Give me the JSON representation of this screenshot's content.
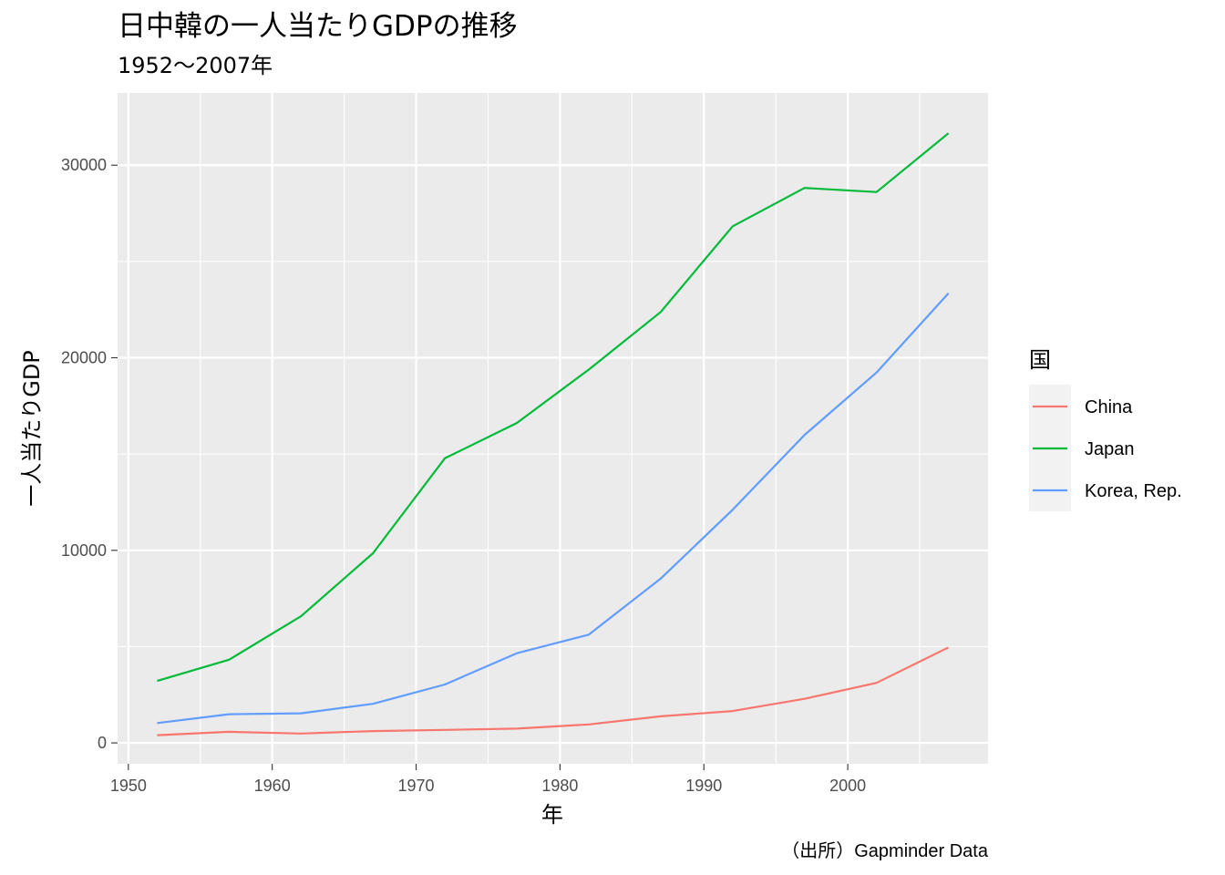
{
  "chart_data": {
    "type": "line",
    "title": "日中韓の一人当たりGDPの推移",
    "subtitle": "1952〜2007年",
    "xlabel": "年",
    "ylabel": "一人当たりGDP",
    "caption": "（出所）Gapminder Data",
    "legend_title": "国",
    "legend_position": "right",
    "grid": true,
    "xlim": [
      1949.25,
      2009.75
    ],
    "ylim": [
      -1085,
      33750
    ],
    "x_ticks": [
      1950,
      1960,
      1970,
      1980,
      1990,
      2000
    ],
    "x_tick_labels": [
      "1950",
      "1960",
      "1970",
      "1980",
      "1990",
      "2000"
    ],
    "y_ticks": [
      0,
      10000,
      20000,
      30000
    ],
    "y_tick_labels": [
      "0",
      "10000",
      "20000",
      "30000"
    ],
    "x": [
      1952,
      1957,
      1962,
      1967,
      1972,
      1977,
      1982,
      1987,
      1992,
      1997,
      2002,
      2007
    ],
    "series": [
      {
        "name": "China",
        "color": "#F8766D",
        "values": [
          400,
          575,
          488,
          613,
          677,
          741,
          962,
          1379,
          1656,
          2289,
          3119,
          4959
        ]
      },
      {
        "name": "Japan",
        "color": "#00BA38",
        "values": [
          3217,
          4318,
          6577,
          9848,
          14779,
          16610,
          19384,
          22376,
          26825,
          28817,
          28605,
          31656
        ]
      },
      {
        "name": "Korea, Rep.",
        "color": "#619CFF",
        "values": [
          1031,
          1488,
          1536,
          2029,
          3031,
          4657,
          5623,
          8533,
          12104,
          15994,
          19234,
          23348
        ]
      }
    ]
  }
}
